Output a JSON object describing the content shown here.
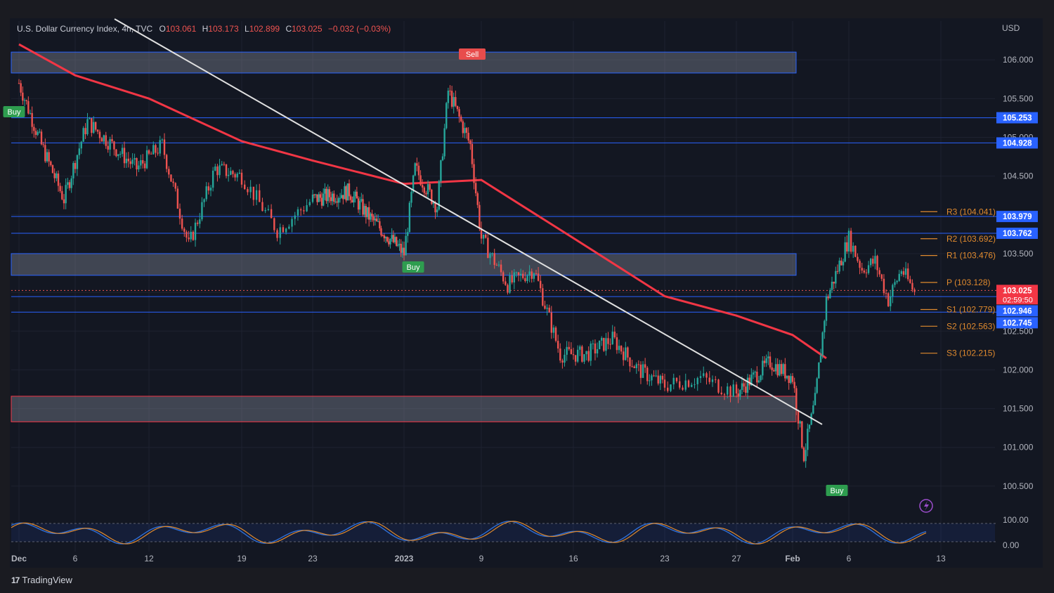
{
  "header": {
    "symbol": "U.S. Dollar Currency Index, 4h, TVC",
    "open_label": "O",
    "open": "103.061",
    "high_label": "H",
    "high": "103.173",
    "low_label": "L",
    "low": "102.899",
    "close_label": "C",
    "close": "103.025",
    "change": "−0.032 (−0.03%)"
  },
  "currency": "USD",
  "countdown": "02:59:50",
  "brand": "TradingView",
  "colors": {
    "background": "#131722",
    "up": "#26a69a",
    "down": "#ef5350",
    "ema": "#f23645",
    "trendline": "#e0e0e0",
    "level_line": "#2962ff",
    "pivot": "#e08a2e",
    "buy": "#2e9d4f",
    "sell": "#e84c4c",
    "osc_blue": "#2f6fd6",
    "osc_orange": "#e08a2e"
  },
  "chart_data": {
    "type": "candlestick",
    "timeframe": "4h",
    "y_axis": {
      "range": [
        100.2,
        106.5
      ],
      "ticks": [
        "106.000",
        "105.500",
        "105.000",
        "104.500",
        "103.500",
        "102.500",
        "102.000",
        "101.500",
        "101.000",
        "100.500"
      ]
    },
    "x_axis": {
      "ticks": [
        "Dec",
        "6",
        "12",
        "19",
        "23",
        "2023",
        "9",
        "16",
        "23",
        "27",
        "Feb",
        "6",
        "13"
      ]
    },
    "price_labels": [
      {
        "value": "105.253",
        "color": "#2962ff"
      },
      {
        "value": "104.928",
        "color": "#2962ff"
      },
      {
        "value": "103.979",
        "color": "#2962ff"
      },
      {
        "value": "103.762",
        "color": "#2962ff"
      },
      {
        "value": "103.025",
        "color": "#f23645"
      },
      {
        "value": "102.946",
        "color": "#2962ff"
      },
      {
        "value": "102.745",
        "color": "#2962ff"
      }
    ],
    "horizontal_levels": [
      105.253,
      104.928,
      103.979,
      103.762,
      102.946,
      102.745
    ],
    "zones": [
      {
        "low": 105.83,
        "high": 106.1,
        "border": "#2962ff"
      },
      {
        "low": 103.22,
        "high": 103.5,
        "border": "#2962ff"
      },
      {
        "low": 101.33,
        "high": 101.66,
        "border": "#f23645"
      }
    ],
    "pivots": [
      {
        "label": "R3 (104.041)",
        "value": 104.041
      },
      {
        "label": "R2 (103.692)",
        "value": 103.692
      },
      {
        "label": "R1 (103.476)",
        "value": 103.476
      },
      {
        "label": "P (103.128)",
        "value": 103.128
      },
      {
        "label": "S1 (102.779)",
        "value": 102.779
      },
      {
        "label": "S2 (102.563)",
        "value": 102.563
      },
      {
        "label": "S3 (102.215)",
        "value": 102.215
      }
    ],
    "signals": [
      {
        "label": "Sell",
        "type": "sell",
        "date_index": 10.3,
        "price": 105.9
      },
      {
        "label": "Buy",
        "type": "buy",
        "date_index": 9.6,
        "price": 103.42
      },
      {
        "label": "Buy",
        "type": "buy",
        "date_index": 17.5,
        "price": 100.8
      },
      {
        "label": "Buy",
        "type": "buy",
        "date_index": 0,
        "price": 105.2
      }
    ],
    "price_path": [
      {
        "date": "Dec 1",
        "price": 105.7
      },
      {
        "date": "Dec 3",
        "price": 104.9
      },
      {
        "date": "Dec 5",
        "price": 104.2
      },
      {
        "date": "Dec 7",
        "price": 105.2
      },
      {
        "date": "Dec 9",
        "price": 104.9
      },
      {
        "date": "Dec 11",
        "price": 104.6
      },
      {
        "date": "Dec 13",
        "price": 104.9
      },
      {
        "date": "Dec 15",
        "price": 103.6
      },
      {
        "date": "Dec 17",
        "price": 104.6
      },
      {
        "date": "Dec 19",
        "price": 104.5
      },
      {
        "date": "Dec 21",
        "price": 103.8
      },
      {
        "date": "Dec 23",
        "price": 104.2
      },
      {
        "date": "Dec 27",
        "price": 104.3
      },
      {
        "date": "Dec 29",
        "price": 104.0
      },
      {
        "date": "Jan 2",
        "price": 103.5
      },
      {
        "date": "Jan 3",
        "price": 104.6
      },
      {
        "date": "Jan 5",
        "price": 104.1
      },
      {
        "date": "Jan 6",
        "price": 105.6
      },
      {
        "date": "Jan 8",
        "price": 104.9
      },
      {
        "date": "Jan 9",
        "price": 103.7
      },
      {
        "date": "Jan 11",
        "price": 103.1
      },
      {
        "date": "Jan 13",
        "price": 103.3
      },
      {
        "date": "Jan 15",
        "price": 102.2
      },
      {
        "date": "Jan 17",
        "price": 102.2
      },
      {
        "date": "Jan 19",
        "price": 102.4
      },
      {
        "date": "Jan 21",
        "price": 102.0
      },
      {
        "date": "Jan 23",
        "price": 101.8
      },
      {
        "date": "Jan 25",
        "price": 101.9
      },
      {
        "date": "Jan 27",
        "price": 101.7
      },
      {
        "date": "Jan 30",
        "price": 102.1
      },
      {
        "date": "Feb 1",
        "price": 101.9
      },
      {
        "date": "Feb 2",
        "price": 100.9
      },
      {
        "date": "Feb 3",
        "price": 101.6
      },
      {
        "date": "Feb 4",
        "price": 102.9
      },
      {
        "date": "Feb 6",
        "price": 103.7
      },
      {
        "date": "Feb 7",
        "price": 103.3
      },
      {
        "date": "Feb 8",
        "price": 103.4
      },
      {
        "date": "Feb 9",
        "price": 102.9
      },
      {
        "date": "Feb 10",
        "price": 103.3
      },
      {
        "date": "Feb 11",
        "price": 103.0
      }
    ],
    "ema_path": [
      {
        "date": "Dec 1",
        "price": 106.2
      },
      {
        "date": "Dec 6",
        "price": 105.8
      },
      {
        "date": "Dec 12",
        "price": 105.5
      },
      {
        "date": "Dec 19",
        "price": 104.95
      },
      {
        "date": "Dec 23",
        "price": 104.7
      },
      {
        "date": "Jan 2",
        "price": 104.4
      },
      {
        "date": "Jan 9",
        "price": 104.45
      },
      {
        "date": "Jan 16",
        "price": 103.7
      },
      {
        "date": "Jan 23",
        "price": 102.95
      },
      {
        "date": "Jan 27",
        "price": 102.7
      },
      {
        "date": "Feb 1",
        "price": 102.45
      },
      {
        "date": "Feb 4",
        "price": 102.15
      }
    ],
    "oscillator": {
      "range": [
        0,
        100
      ],
      "ticks": [
        "100.00",
        "0.00"
      ]
    }
  }
}
